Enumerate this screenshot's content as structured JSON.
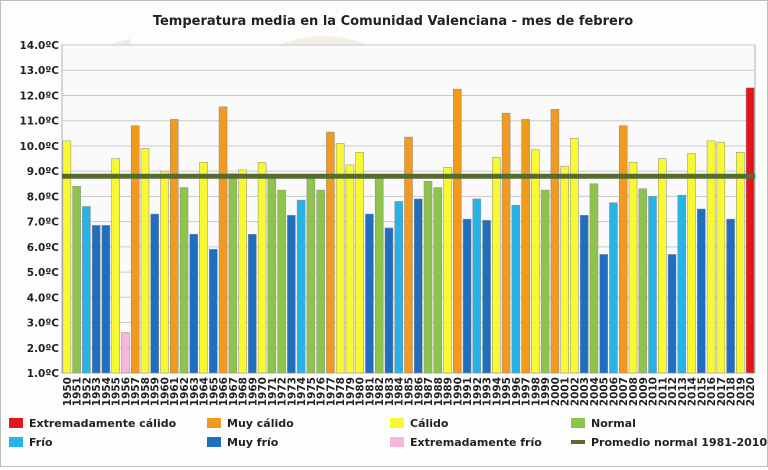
{
  "chart_data": {
    "type": "bar",
    "title": "Temperatura media en la Comunidad Valenciana - mes de febrero",
    "xlabel": "",
    "ylabel": "",
    "ylim": [
      1.0,
      14.0
    ],
    "ytick_step": 1.0,
    "ytick_suffix": "ºC",
    "grid": true,
    "legend_position": "bottom",
    "categories": [
      "1950",
      "1951",
      "1952",
      "1953",
      "1954",
      "1955",
      "1956",
      "1957",
      "1958",
      "1959",
      "1960",
      "1961",
      "1962",
      "1963",
      "1964",
      "1965",
      "1966",
      "1967",
      "1968",
      "1969",
      "1970",
      "1971",
      "1972",
      "1973",
      "1974",
      "1975",
      "1976",
      "1977",
      "1978",
      "1979",
      "1980",
      "1981",
      "1982",
      "1983",
      "1984",
      "1985",
      "1986",
      "1987",
      "1988",
      "1989",
      "1990",
      "1991",
      "1992",
      "1993",
      "1994",
      "1995",
      "1996",
      "1997",
      "1998",
      "1999",
      "2000",
      "2001",
      "2002",
      "2003",
      "2004",
      "2005",
      "2006",
      "2007",
      "2008",
      "2009",
      "2010",
      "2011",
      "2012",
      "2013",
      "2014",
      "2015",
      "2016",
      "2017",
      "2018",
      "2019",
      "2020"
    ],
    "values": [
      10.2,
      8.4,
      7.6,
      6.85,
      6.85,
      9.5,
      2.6,
      10.8,
      9.9,
      7.3,
      9.0,
      11.05,
      8.35,
      6.5,
      9.35,
      5.9,
      11.55,
      8.9,
      9.05,
      6.5,
      9.35,
      8.85,
      8.25,
      7.25,
      7.85,
      8.85,
      8.25,
      10.55,
      10.1,
      9.25,
      9.75,
      7.3,
      8.85,
      6.75,
      7.8,
      10.35,
      7.9,
      8.6,
      8.35,
      9.15,
      12.25,
      7.1,
      7.9,
      7.05,
      9.55,
      11.3,
      7.65,
      11.05,
      9.85,
      8.25,
      11.45,
      9.2,
      10.3,
      7.25,
      8.5,
      5.7,
      7.75,
      10.8,
      9.35,
      8.3,
      8.0,
      9.5,
      5.7,
      8.05,
      9.7,
      7.5,
      10.2,
      10.15,
      7.1,
      9.75,
      12.3
    ],
    "classes": [
      "C",
      "N",
      "F",
      "MF",
      "MF",
      "C",
      "EF",
      "MC",
      "C",
      "MF",
      "C",
      "MC",
      "N",
      "MF",
      "C",
      "MF",
      "MC",
      "N",
      "C",
      "MF",
      "C",
      "N",
      "N",
      "MF",
      "F",
      "N",
      "N",
      "MC",
      "C",
      "C",
      "C",
      "MF",
      "N",
      "MF",
      "F",
      "MC",
      "MF",
      "N",
      "N",
      "C",
      "MC",
      "MF",
      "F",
      "MF",
      "C",
      "MC",
      "F",
      "MC",
      "C",
      "N",
      "MC",
      "C",
      "C",
      "MF",
      "N",
      "MF",
      "F",
      "MC",
      "C",
      "N",
      "F",
      "C",
      "MF",
      "F",
      "C",
      "MF",
      "C",
      "C",
      "MF",
      "C",
      "EC"
    ],
    "reference_line": {
      "name": "Promedio normal 1981-2010",
      "value": 8.8,
      "color": "#556b2f"
    },
    "legend": [
      {
        "key": "EC",
        "label": "Extremadamente cálido",
        "color": "#e8141c"
      },
      {
        "key": "MC",
        "label": "Muy cálido",
        "color": "#f29a1e"
      },
      {
        "key": "C",
        "label": "Cálido",
        "color": "#f9f933"
      },
      {
        "key": "N",
        "label": "Normal",
        "color": "#8fc44c"
      },
      {
        "key": "F",
        "label": "Frío",
        "color": "#26b4e8"
      },
      {
        "key": "MF",
        "label": "Muy frío",
        "color": "#1f6ec0"
      },
      {
        "key": "EF",
        "label": "Extremadamente frío",
        "color": "#f5b8dc"
      },
      {
        "key": "LINE",
        "label": "Promedio normal 1981-2010",
        "color": "#556b2f"
      }
    ]
  }
}
